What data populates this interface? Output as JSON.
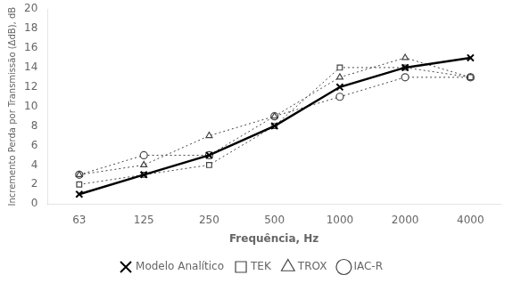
{
  "chart_data": {
    "type": "line",
    "x": [
      63,
      125,
      250,
      500,
      1000,
      2000,
      4000
    ],
    "series": [
      {
        "name": "TEK",
        "color": "#444444",
        "marker": "square",
        "line_style": "dotted",
        "values": [
          2.0,
          3.0,
          4.0,
          8.0,
          14.0,
          14.0,
          13.0
        ]
      },
      {
        "name": "TROX",
        "color": "#444444",
        "marker": "triangle",
        "line_style": "dotted",
        "values": [
          3.0,
          4.0,
          7.0,
          9.0,
          13.0,
          15.0,
          13.0
        ]
      },
      {
        "name": "IAC-R",
        "color": "#444444",
        "marker": "circle",
        "line_style": "dotted",
        "values": [
          3.0,
          5.0,
          5.0,
          9.0,
          11.0,
          13.0,
          13.0
        ]
      },
      {
        "name": "Modelo Analítico",
        "color": "#000000",
        "marker": "x",
        "line_style": "solid",
        "values": [
          1.0,
          3.0,
          5.0,
          8.0,
          12.0,
          14.0,
          15.0
        ]
      }
    ],
    "xlabel": "Frequência, Hz",
    "ylabel": "Incremento Perda por Transmissão (ΔdB), dB",
    "log": "x",
    "xlim": [
      45,
      5500
    ],
    "xticks": [
      63,
      125,
      250,
      500,
      1000,
      2000,
      4000
    ],
    "ylim": [
      0,
      20
    ],
    "yticks": [
      0,
      2,
      4,
      6,
      8,
      10,
      12,
      14,
      16,
      18,
      20
    ],
    "grid": false,
    "legend": "bottom"
  }
}
